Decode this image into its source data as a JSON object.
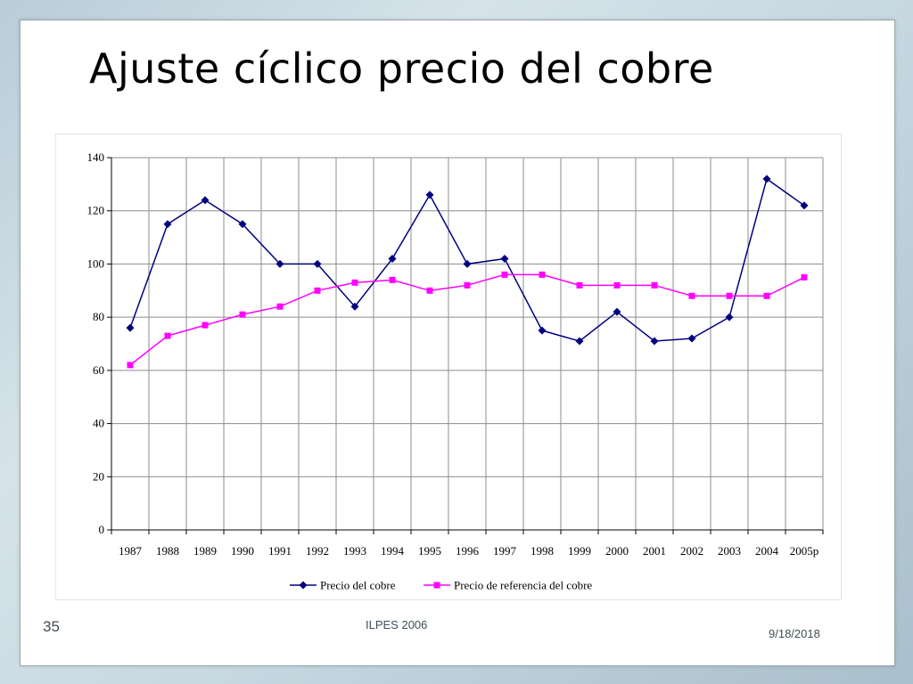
{
  "slide": {
    "title": "Ajuste cíclico precio del cobre",
    "page_number": "35",
    "footer": "ILPES 2006",
    "date": "9/18/2018"
  },
  "chart_data": {
    "type": "line",
    "title": "",
    "xlabel": "",
    "ylabel": "",
    "categories": [
      "1987",
      "1988",
      "1989",
      "1990",
      "1991",
      "1992",
      "1993",
      "1994",
      "1995",
      "1996",
      "1997",
      "1998",
      "1999",
      "2000",
      "2001",
      "2002",
      "2003",
      "2004",
      "2005p"
    ],
    "ylim": [
      0,
      140
    ],
    "yticks": [
      0,
      20,
      40,
      60,
      80,
      100,
      120,
      140
    ],
    "grid": true,
    "legend_position": "bottom",
    "series": [
      {
        "name": "Precio del cobre",
        "color": "#000080",
        "marker": "diamond",
        "values": [
          76,
          115,
          124,
          115,
          100,
          100,
          84,
          102,
          126,
          100,
          102,
          75,
          71,
          82,
          71,
          72,
          80,
          132,
          122
        ]
      },
      {
        "name": "Precio de referencia del cobre",
        "color": "#ff00ff",
        "marker": "square",
        "values": [
          62,
          73,
          77,
          81,
          84,
          90,
          93,
          94,
          90,
          92,
          96,
          96,
          92,
          92,
          92,
          88,
          88,
          88,
          95
        ]
      }
    ]
  }
}
